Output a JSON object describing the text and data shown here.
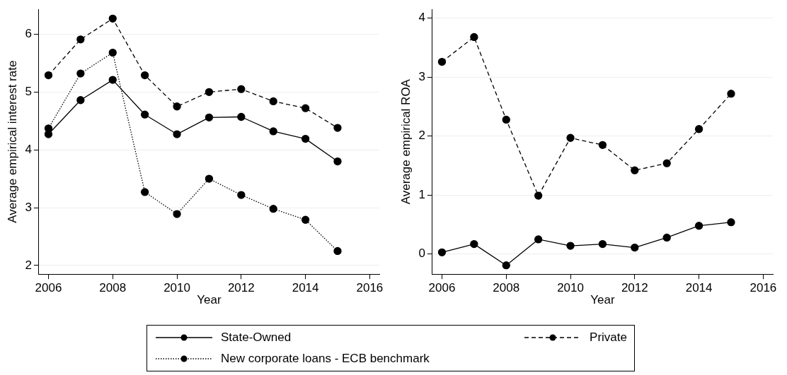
{
  "chart_data": [
    {
      "type": "line",
      "xlabel": "Year",
      "ylabel": "Average empirical interest rate",
      "x": [
        2006,
        2007,
        2008,
        2009,
        2010,
        2011,
        2012,
        2013,
        2014,
        2015
      ],
      "xlim": [
        2005.7,
        2016.3
      ],
      "xticks": [
        2006,
        2008,
        2010,
        2012,
        2014,
        2016
      ],
      "ylim": [
        1.85,
        6.43
      ],
      "yticks": [
        2,
        3,
        4,
        5,
        6
      ],
      "grid": "y",
      "legend": "bottom",
      "marker": "circle",
      "series": [
        {
          "name": "State-Owned",
          "color": "#000000",
          "line_style": "solid",
          "values": [
            4.27,
            4.86,
            5.21,
            4.61,
            4.27,
            4.56,
            4.57,
            4.32,
            4.19,
            3.8
          ]
        },
        {
          "name": "Private",
          "color": "#000000",
          "line_style": "dashed",
          "values": [
            5.29,
            5.91,
            6.27,
            5.29,
            4.75,
            5.0,
            5.05,
            4.84,
            4.72,
            4.38
          ]
        },
        {
          "name": "New corporate loans - ECB benchmark",
          "color": "#000000",
          "line_style": "dotted",
          "values": [
            4.37,
            5.32,
            5.68,
            3.27,
            2.89,
            3.5,
            3.22,
            2.98,
            2.79,
            2.25
          ]
        }
      ]
    },
    {
      "type": "line",
      "xlabel": "Year",
      "ylabel": "Average empirical ROA",
      "x": [
        2006,
        2007,
        2008,
        2009,
        2010,
        2011,
        2012,
        2013,
        2014,
        2015
      ],
      "xlim": [
        2005.7,
        2016.3
      ],
      "xticks": [
        2006,
        2008,
        2010,
        2012,
        2014,
        2016
      ],
      "ylim": [
        -0.34,
        4.15
      ],
      "yticks": [
        0,
        1,
        2,
        3,
        4
      ],
      "grid": "y",
      "legend": "bottom",
      "marker": "circle",
      "series": [
        {
          "name": "State-Owned",
          "color": "#000000",
          "line_style": "solid",
          "values": [
            0.03,
            0.17,
            -0.19,
            0.25,
            0.14,
            0.17,
            0.11,
            0.28,
            0.48,
            0.54
          ]
        },
        {
          "name": "Private",
          "color": "#000000",
          "line_style": "dashed",
          "values": [
            3.26,
            3.68,
            2.28,
            0.99,
            1.97,
            1.85,
            1.42,
            1.54,
            2.12,
            2.72
          ]
        }
      ]
    }
  ]
}
